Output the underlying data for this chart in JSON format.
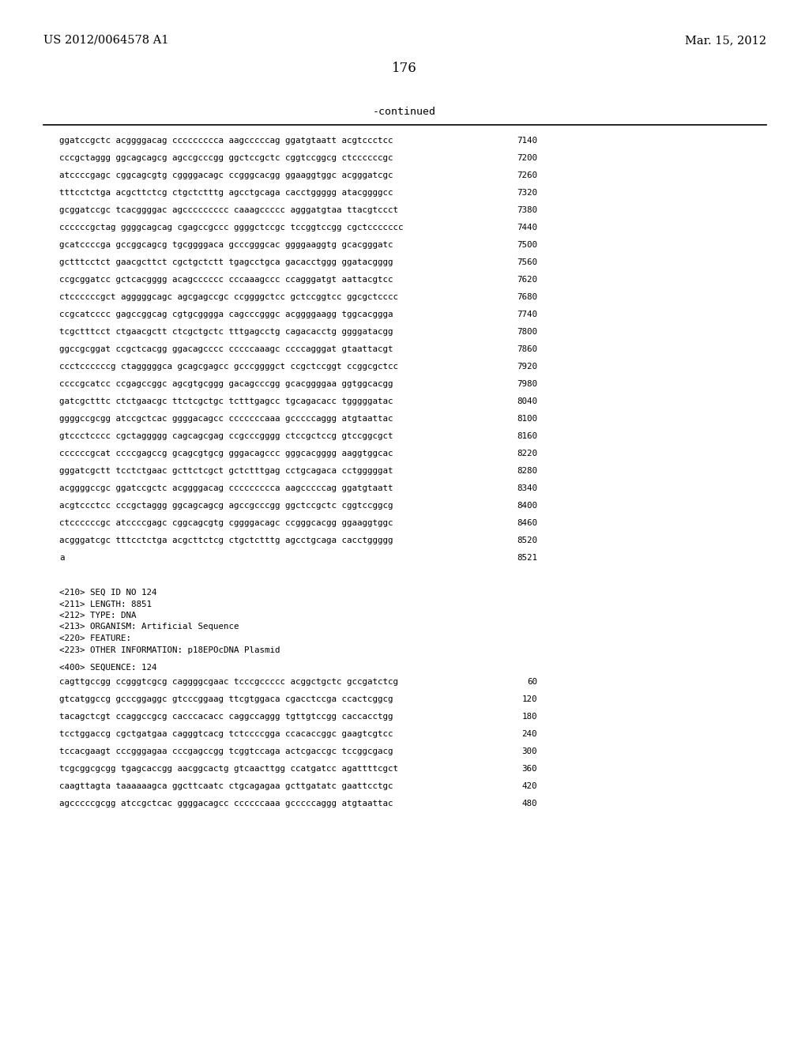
{
  "header_left": "US 2012/0064578 A1",
  "header_right": "Mar. 15, 2012",
  "page_number": "176",
  "continued_label": "-continued",
  "background_color": "#ffffff",
  "text_color": "#000000",
  "sequence_lines": [
    [
      "ggatccgctc acggggacag ccccccccca aagcccccag ggatgtaatt acgtccctcc",
      "7140"
    ],
    [
      "cccgctaggg ggcagcagcg agccgcccgg ggctccgctc cggtccggcg ctccccccgc",
      "7200"
    ],
    [
      "atccccgagc cggcagcgtg cggggacagc ccgggcacgg ggaaggtggc acgggatcgc",
      "7260"
    ],
    [
      "tttcctctga acgcttctcg ctgctctttg agcctgcaga cacctggggg atacggggcc",
      "7320"
    ],
    [
      "gcggatccgc tcacggggac agccccccccc caaagccccc agggatgtaa ttacgtccct",
      "7380"
    ],
    [
      "ccccccgctag ggggcagcag cgagccgccc ggggctccgc tccggtccgg cgctccccccc",
      "7440"
    ],
    [
      "gcatccccga gccggcagcg tgcggggaca gcccgggcac ggggaaggtg gcacgggatc",
      "7500"
    ],
    [
      "gctttcctct gaacgcttct cgctgctctt tgagcctgca gacacctggg ggatacgggg",
      "7560"
    ],
    [
      "ccgcggatcc gctcacgggg acagcccccc cccaaagccc ccagggatgt aattacgtcc",
      "7620"
    ],
    [
      "ctccccccgct agggggcagc agcgagccgc ccggggctcc gctccggtcc ggcgctcccc",
      "7680"
    ],
    [
      "ccgcatcccc gagccggcag cgtgcgggga cagcccgggc acggggaagg tggcacggga",
      "7740"
    ],
    [
      "tcgctttcct ctgaacgctt ctcgctgctc tttgagcctg cagacacctg ggggatacgg",
      "7800"
    ],
    [
      "ggccgcggat ccgctcacgg ggacagcccc cccccaaagc ccccagggat gtaattacgt",
      "7860"
    ],
    [
      "ccctccccccg ctagggggca gcagcgagcc gcccggggct ccgctccggt ccggcgctcc",
      "7920"
    ],
    [
      "ccccgcatcc ccgagccggc agcgtgcggg gacagcccgg gcacggggaa ggtggcacgg",
      "7980"
    ],
    [
      "gatcgctttc ctctgaacgc ttctcgctgc tctttgagcc tgcagacacc tgggggatac",
      "8040"
    ],
    [
      "ggggccgcgg atccgctcac ggggacagcc cccccccaaa gcccccaggg atgtaattac",
      "8100"
    ],
    [
      "gtccctcccc cgctaggggg cagcagcgag ccgcccgggg ctccgctccg gtccggcgct",
      "8160"
    ],
    [
      "ccccccgcat ccccgagccg gcagcgtgcg gggacagccc gggcacgggg aaggtggcac",
      "8220"
    ],
    [
      "gggatcgctt tcctctgaac gcttctcgct gctctttgag cctgcagaca cctgggggat",
      "8280"
    ],
    [
      "acggggccgc ggatccgctc acggggacag ccccccccca aagcccccag ggatgtaatt",
      "8340"
    ],
    [
      "acgtccctcc cccgctaggg ggcagcagcg agccgcccgg ggctccgctc cggtccggcg",
      "8400"
    ],
    [
      "ctccccccgc atccccgagc cggcagcgtg cggggacagc ccgggcacgg ggaaggtggc",
      "8460"
    ],
    [
      "acgggatcgc tttcctctga acgcttctcg ctgctctttg agcctgcaga cacctggggg",
      "8520"
    ],
    [
      "a",
      "8521"
    ]
  ],
  "metadata_lines": [
    "<210> SEQ ID NO 124",
    "<211> LENGTH: 8851",
    "<212> TYPE: DNA",
    "<213> ORGANISM: Artificial Sequence",
    "<220> FEATURE:",
    "<223> OTHER INFORMATION: p18EPOcDNA Plasmid"
  ],
  "sequence_label": "<400> SEQUENCE: 124",
  "seq_lines_after_meta": [
    [
      "cagttgccgg ccgggtcgcg caggggcgaac tcccgccccc acggctgctc gccgatctcg",
      "60"
    ],
    [
      "gtcatggccg gcccggaggc gtcccggaag ttcgtggaca cgacctccga ccactcggcg",
      "120"
    ],
    [
      "tacagctcgt ccaggccgcg cacccacacc caggccaggg tgttgtccgg caccacctgg",
      "180"
    ],
    [
      "tcctggaccg cgctgatgaa cagggtcacg tctccccgga ccacaccggc gaagtcgtcc",
      "240"
    ],
    [
      "tccacgaagt cccgggagaa cccgagccgg tcggtccaga actcgaccgc tccggcgacg",
      "300"
    ],
    [
      "tcgcggcgcgg tgagcaccgg aacggcactg gtcaacttgg ccatgatcc agattttcgct",
      "360"
    ],
    [
      "caagttagta taaaaaagca ggcttcaatc ctgcagagaa gcttgatatc gaattcctgc",
      "420"
    ],
    [
      "agcccccgcgg atccgctcac ggggacagcc ccccccaaa gcccccaggg atgtaattac",
      "480"
    ]
  ]
}
